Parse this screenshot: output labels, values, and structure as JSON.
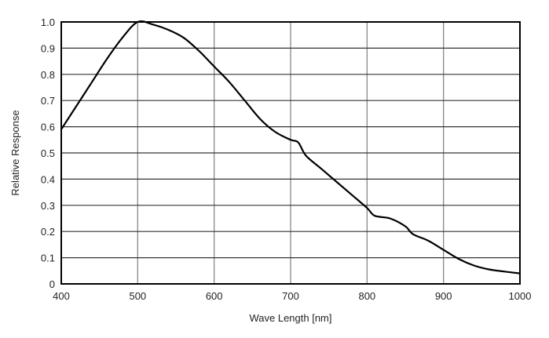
{
  "chart_data": {
    "type": "line",
    "title": "",
    "xlabel": "Wave Length [nm]",
    "ylabel": "Relative Response",
    "xlim": [
      400,
      1000
    ],
    "ylim": [
      0,
      1.0
    ],
    "grid": true,
    "x_ticks": [
      "400",
      "500",
      "600",
      "700",
      "800",
      "900",
      "1000"
    ],
    "y_ticks": [
      "0",
      "0.1",
      "0.2",
      "0.3",
      "0.4",
      "0.5",
      "0.6",
      "0.7",
      "0.8",
      "0.9",
      "1.0"
    ],
    "line_color": "#000000",
    "series": [
      {
        "x": [
          400,
          420,
          440,
          460,
          480,
          500,
          520,
          540,
          560,
          580,
          600,
          620,
          640,
          660,
          680,
          700,
          710,
          720,
          740,
          760,
          780,
          800,
          810,
          830,
          850,
          860,
          880,
          900,
          920,
          940,
          960,
          980,
          1000
        ],
        "y": [
          0.59,
          0.68,
          0.77,
          0.86,
          0.94,
          1.0,
          0.99,
          0.97,
          0.94,
          0.89,
          0.83,
          0.77,
          0.7,
          0.63,
          0.58,
          0.55,
          0.54,
          0.49,
          0.44,
          0.39,
          0.34,
          0.29,
          0.26,
          0.25,
          0.22,
          0.19,
          0.165,
          0.13,
          0.095,
          0.07,
          0.055,
          0.047,
          0.04
        ]
      }
    ]
  }
}
